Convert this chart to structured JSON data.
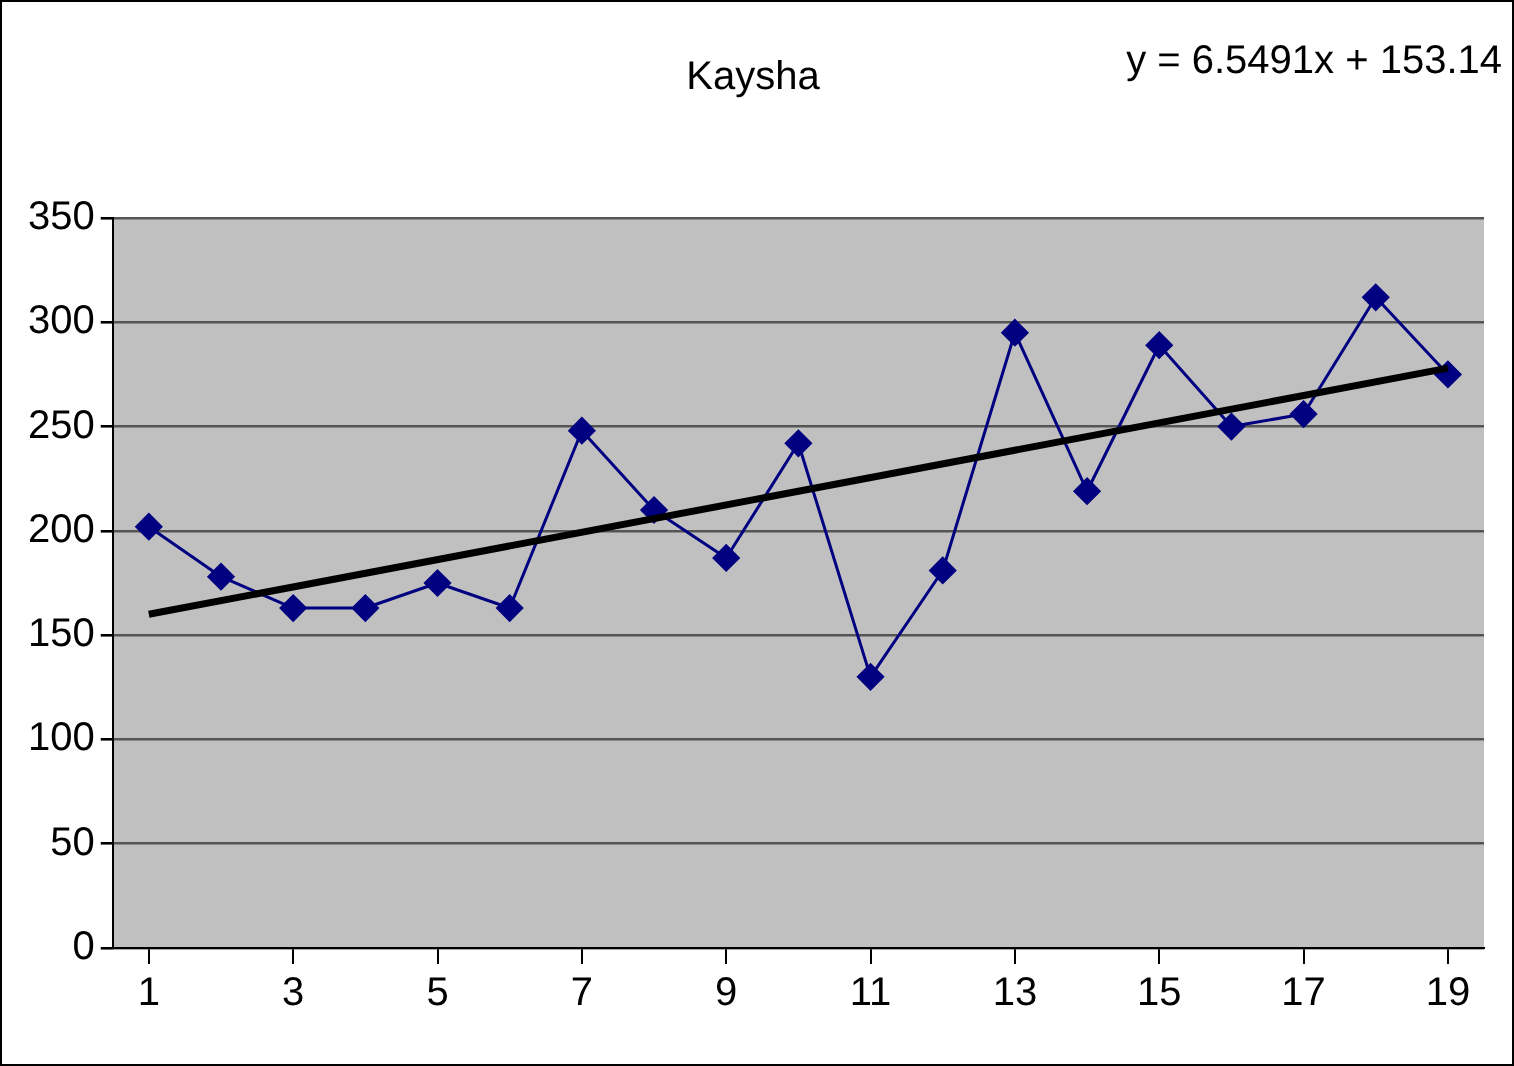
{
  "chart_data": {
    "type": "line",
    "title": "Kaysha",
    "annotations": [
      "y = 6.5491x + 153.14"
    ],
    "x": [
      1,
      2,
      3,
      4,
      5,
      6,
      7,
      8,
      9,
      10,
      11,
      12,
      13,
      14,
      15,
      16,
      17,
      18,
      19
    ],
    "xlim": [
      0.5,
      19.5
    ],
    "xticks": [
      1,
      3,
      5,
      7,
      9,
      11,
      13,
      15,
      17,
      19
    ],
    "series": [
      {
        "color": "#000080",
        "values": [
          202,
          178,
          163,
          163,
          175,
          163,
          248,
          210,
          187,
          242,
          130,
          181,
          295,
          219,
          289,
          250,
          256,
          312,
          275
        ]
      },
      {
        "type": "line",
        "color": "#000000",
        "x": [
          1,
          19
        ],
        "values": [
          160,
          278
        ],
        "marker": "none"
      }
    ],
    "ylim": [
      0,
      350
    ],
    "yticks": [
      0,
      50,
      100,
      150,
      200,
      250,
      300,
      350
    ],
    "grid": "y",
    "legend": false,
    "marker": "diamond",
    "line_style": "solid"
  }
}
